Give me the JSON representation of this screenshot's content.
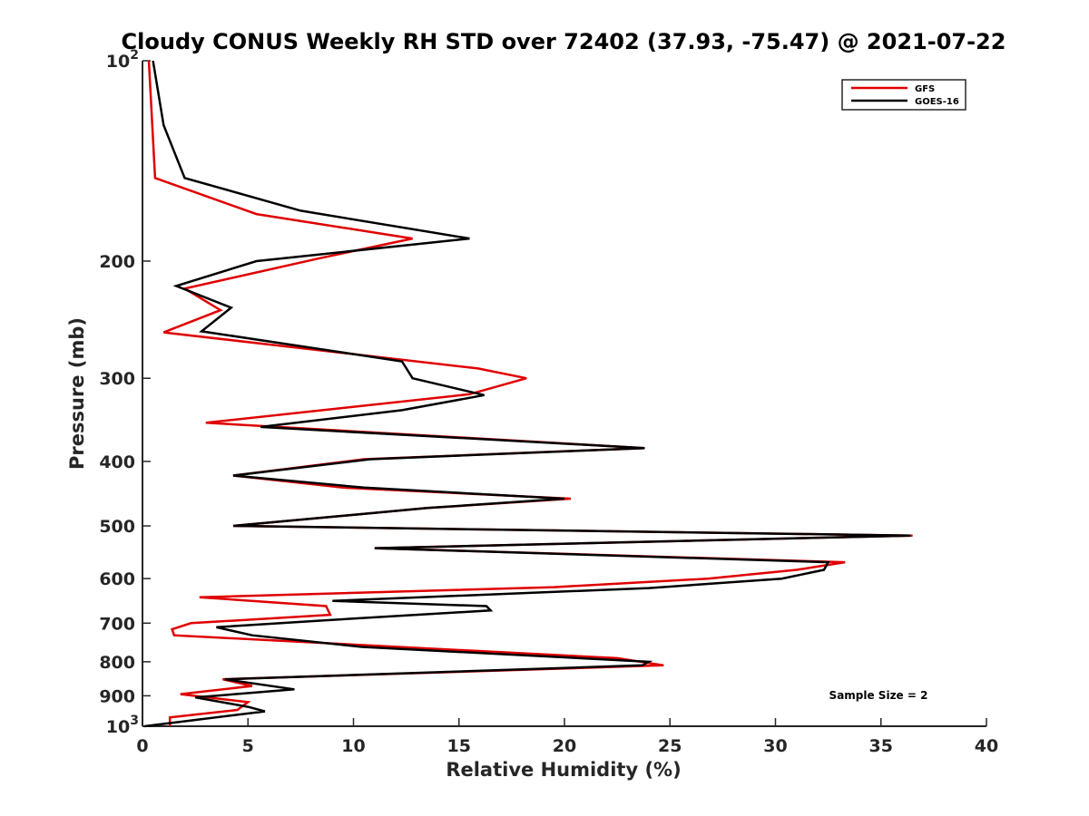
{
  "chart_data": {
    "type": "line",
    "title": "Cloudy CONUS Weekly RH STD over 72402 (37.93, -75.47) @ 2021-07-22",
    "xlabel": "Relative Humidity (%)",
    "ylabel": "Pressure (mb)",
    "xlim": [
      0,
      40
    ],
    "ylim": [
      100,
      1000
    ],
    "y_scale": "log",
    "y_reversed": true,
    "grid": false,
    "legend_position": "top-right",
    "x_ticks": [
      {
        "value": 0,
        "label": "0"
      },
      {
        "value": 5,
        "label": "5"
      },
      {
        "value": 10,
        "label": "10"
      },
      {
        "value": 15,
        "label": "15"
      },
      {
        "value": 20,
        "label": "20"
      },
      {
        "value": 25,
        "label": "25"
      },
      {
        "value": 30,
        "label": "30"
      },
      {
        "value": 35,
        "label": "35"
      },
      {
        "value": 40,
        "label": "40"
      }
    ],
    "y_ticks": [
      {
        "value": 100,
        "label": "10",
        "exponent": "2"
      },
      {
        "value": 200,
        "label": "200"
      },
      {
        "value": 300,
        "label": "300"
      },
      {
        "value": 400,
        "label": "400"
      },
      {
        "value": 500,
        "label": "500"
      },
      {
        "value": 600,
        "label": "600"
      },
      {
        "value": 700,
        "label": "700"
      },
      {
        "value": 800,
        "label": "800"
      },
      {
        "value": 900,
        "label": "900"
      },
      {
        "value": 1000,
        "label": "10",
        "exponent": "3"
      }
    ],
    "series": [
      {
        "name": "GFS",
        "color": "#e00000",
        "points": [
          [
            0.3,
            100
          ],
          [
            0.6,
            150
          ],
          [
            5.4,
            170
          ],
          [
            12.8,
            185
          ],
          [
            8.4,
            198
          ],
          [
            2.0,
            220
          ],
          [
            3.7,
            237
          ],
          [
            1.0,
            256
          ],
          [
            15.9,
            290
          ],
          [
            18.2,
            300
          ],
          [
            15.5,
            317
          ],
          [
            3.0,
            350
          ],
          [
            23.8,
            382
          ],
          [
            10.5,
            397
          ],
          [
            4.3,
            420
          ],
          [
            9.5,
            438
          ],
          [
            20.3,
            455
          ],
          [
            13.5,
            470
          ],
          [
            4.3,
            500
          ],
          [
            36.5,
            517
          ],
          [
            11.0,
            540
          ],
          [
            33.3,
            567
          ],
          [
            31.0,
            582
          ],
          [
            26.8,
            600
          ],
          [
            19.5,
            618
          ],
          [
            2.7,
            640
          ],
          [
            8.7,
            660
          ],
          [
            8.9,
            680
          ],
          [
            2.3,
            700
          ],
          [
            1.4,
            715
          ],
          [
            1.5,
            730
          ],
          [
            22.5,
            790
          ],
          [
            24.7,
            810
          ],
          [
            3.8,
            850
          ],
          [
            5.2,
            870
          ],
          [
            1.8,
            895
          ],
          [
            5.0,
            920
          ],
          [
            4.5,
            945
          ],
          [
            1.3,
            970
          ],
          [
            1.3,
            1000
          ]
        ]
      },
      {
        "name": "GOES-16",
        "color": "#000000",
        "points": [
          [
            0.5,
            100
          ],
          [
            1.0,
            125
          ],
          [
            2.0,
            150
          ],
          [
            7.5,
            168
          ],
          [
            15.5,
            185
          ],
          [
            5.4,
            200
          ],
          [
            1.6,
            218
          ],
          [
            4.2,
            235
          ],
          [
            2.8,
            255
          ],
          [
            12.3,
            283
          ],
          [
            12.8,
            300
          ],
          [
            16.2,
            318
          ],
          [
            12.3,
            335
          ],
          [
            5.6,
            355
          ],
          [
            23.8,
            382
          ],
          [
            10.8,
            397
          ],
          [
            4.3,
            420
          ],
          [
            10.5,
            438
          ],
          [
            20.0,
            455
          ],
          [
            13.5,
            470
          ],
          [
            4.3,
            500
          ],
          [
            36.4,
            517
          ],
          [
            11.0,
            540
          ],
          [
            32.5,
            567
          ],
          [
            32.3,
            582
          ],
          [
            30.3,
            600
          ],
          [
            24.0,
            620
          ],
          [
            9.0,
            648
          ],
          [
            16.3,
            660
          ],
          [
            16.5,
            670
          ],
          [
            8.7,
            693
          ],
          [
            3.5,
            710
          ],
          [
            5.2,
            730
          ],
          [
            10.4,
            760
          ],
          [
            24.0,
            800
          ],
          [
            23.7,
            810
          ],
          [
            3.9,
            850
          ],
          [
            7.2,
            880
          ],
          [
            2.5,
            905
          ],
          [
            5.0,
            935
          ],
          [
            5.8,
            950
          ],
          [
            0.1,
            1000
          ]
        ]
      }
    ],
    "annotation": "Sample Size = 2"
  }
}
